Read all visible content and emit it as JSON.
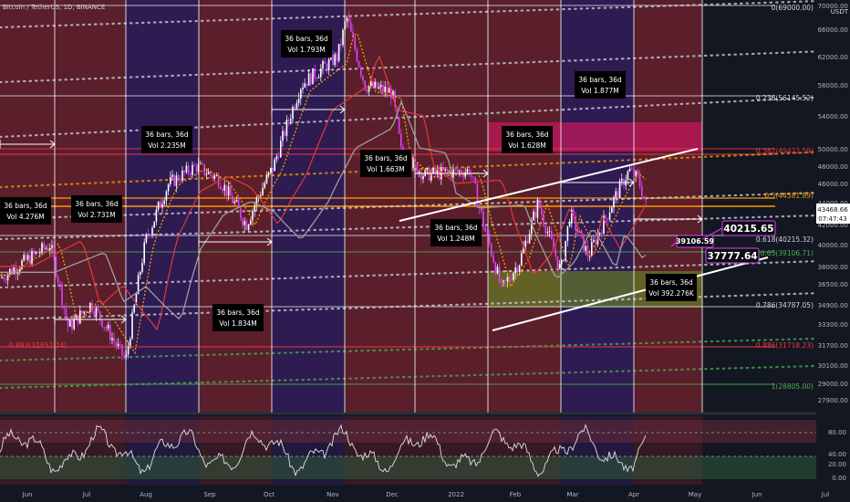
{
  "header": {
    "title": "Bitcoin / TetherUS, 1D, BINANCE"
  },
  "price_axis": {
    "labels": [
      "70000.00",
      "66000.00",
      "62000.00",
      "58000.00",
      "54000.00",
      "50000.00",
      "48000.00",
      "46000.00",
      "44000.00",
      "42000.00",
      "40000.00",
      "38000.00",
      "36500.00",
      "34900.00",
      "33300.00",
      "31700.00",
      "30100.00",
      "29000.00",
      "27900.00"
    ],
    "unit": "USDT",
    "current_price": "43468.66",
    "countdown": "07:47:43"
  },
  "rsi_axis": {
    "labels": [
      "80.00",
      "40.00",
      "20.00",
      "0.00"
    ]
  },
  "time_axis": {
    "labels": [
      "Jun",
      "Jul",
      "Aug",
      "Sep",
      "Oct",
      "Nov",
      "Dec",
      "2022",
      "Feb",
      "Mar",
      "Apr",
      "May",
      "Jun",
      "Jul"
    ]
  },
  "fib_levels": [
    {
      "label": "0(69000.00)",
      "color": "#d1d4dc"
    },
    {
      "label": "0.236(56145.52)",
      "color": "#d1d4dc"
    },
    {
      "label": "0.382(49422.59)",
      "color": "#f23645"
    },
    {
      "label": "0.5(44581.89)",
      "color": "#ff9800"
    },
    {
      "label": "0.618(40215.32)",
      "color": "#d1d4dc"
    },
    {
      "label": "0.65(39106.71)",
      "color": "#4caf50"
    },
    {
      "label": "0.786(34787.05)",
      "color": "#d1d4dc"
    },
    {
      "label": "0.886(31718.23)",
      "color": "#f23645"
    },
    {
      "label": "0.893(31652.24)",
      "color": "#f23645"
    },
    {
      "label": "1(28805.00)",
      "color": "#4caf50"
    }
  ],
  "range_boxes": [
    {
      "bars": "36 bars, 36d",
      "vol": "Vol 4.276M"
    },
    {
      "bars": "36 bars, 36d",
      "vol": "Vol 2.731M"
    },
    {
      "bars": "36 bars, 36d",
      "vol": "Vol 2.235M"
    },
    {
      "bars": "36 bars, 36d",
      "vol": "Vol 1.834M"
    },
    {
      "bars": "36 bars, 36d",
      "vol": "Vol 1.793M"
    },
    {
      "bars": "36 bars, 36d",
      "vol": "Vol 1.663M"
    },
    {
      "bars": "36 bars, 36d",
      "vol": "Vol 1.248M"
    },
    {
      "bars": "36 bars, 36d",
      "vol": "Vol 1.628M"
    },
    {
      "bars": "36 bars, 36d",
      "vol": "Vol 1.877M"
    },
    {
      "bars": "36 bars, 36d",
      "vol": "Vol 392.276K"
    }
  ],
  "price_callouts": [
    {
      "text": "40215.65"
    },
    {
      "text": "39106.59"
    },
    {
      "text": "37777.64"
    }
  ],
  "colors": {
    "background": "#131722",
    "zone_red": "#5a1f2b",
    "zone_purple": "#2e1b52",
    "candle_up": "#ffffff",
    "candle_down": "#e040fb",
    "ma_orange": "#ff9800",
    "ma_red": "#e53935",
    "ma_gray": "#9e9e9e",
    "rsi_line": "#e0e0e0"
  },
  "chart_data": {
    "type": "candlestick",
    "title": "Bitcoin / TetherUS, 1D, BINANCE",
    "x_ticks": [
      "Jun",
      "Jul",
      "Aug",
      "Sep",
      "Oct",
      "Nov",
      "Dec",
      "2022",
      "Feb",
      "Mar",
      "Apr",
      "May",
      "Jun",
      "Jul"
    ],
    "ylim": [
      27000,
      70000
    ],
    "close_path": {
      "x": [
        "Jun 1",
        "Jun 15",
        "Jun 22",
        "Jul 1",
        "Jul 15",
        "Jul 20",
        "Aug 1",
        "Aug 15",
        "Sep 1",
        "Sep 7",
        "Sep 21",
        "Oct 1",
        "Oct 15",
        "Nov 1",
        "Nov 10",
        "Nov 20",
        "Dec 1",
        "Dec 4",
        "Dec 15",
        "Jan 1",
        "Jan 10",
        "Jan 24",
        "Feb 1",
        "Feb 10",
        "Feb 24",
        "Mar 1",
        "Mar 14",
        "Mar 28",
        "Apr 1",
        "Apr 6"
      ],
      "values": [
        37000,
        40000,
        33000,
        35000,
        32000,
        30500,
        40500,
        46000,
        48000,
        46500,
        42000,
        48000,
        58000,
        62000,
        67500,
        58000,
        57000,
        49500,
        47000,
        47500,
        42000,
        36000,
        38500,
        44000,
        37500,
        43000,
        39000,
        47500,
        46500,
        43468.66
      ]
    },
    "moving_averages": [
      {
        "color": "#ff9800",
        "style": "dotted"
      },
      {
        "color": "#e53935",
        "style": "solid"
      },
      {
        "color": "#9e9e9e",
        "style": "solid"
      }
    ],
    "indicator": {
      "type": "rsi",
      "ylim": [
        0,
        100
      ],
      "ticks": [
        80,
        40,
        20,
        0
      ]
    }
  }
}
